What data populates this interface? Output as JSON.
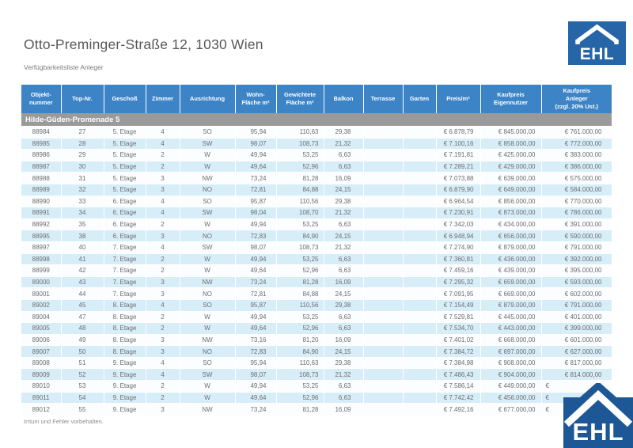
{
  "header": {
    "title": "Otto-Preminger-Straße 12, 1030 Wien",
    "subtitle": "Verfügbarkeitsliste Anleger"
  },
  "logo": {
    "text": "EHL"
  },
  "colors": {
    "header_blue": "#3c84c6",
    "section_gray": "#9a9a9a",
    "stripe_blue": "#d7edf8",
    "logo_blue_top": "#2565a8",
    "logo_blue_bottom": "#1e5796"
  },
  "table": {
    "section_title": "Hilde-Güden-Promenade 5",
    "columns": [
      {
        "key": "objektnummer",
        "lines": [
          "Objekt-",
          "nummer"
        ]
      },
      {
        "key": "top-nr",
        "lines": [
          "Top-Nr."
        ]
      },
      {
        "key": "geschoss",
        "lines": [
          "Geschoß"
        ]
      },
      {
        "key": "zimmer",
        "lines": [
          "Zimmer"
        ]
      },
      {
        "key": "ausrichtung",
        "lines": [
          "Ausrichtung"
        ]
      },
      {
        "key": "wohnflaeche",
        "lines": [
          "Wohn-",
          "Fläche m²"
        ]
      },
      {
        "key": "gewichtete-flaeche",
        "lines": [
          "Gewichtete",
          "Fläche m²"
        ]
      },
      {
        "key": "balkon",
        "lines": [
          "Balkon"
        ]
      },
      {
        "key": "terrasse",
        "lines": [
          "Terrasse"
        ]
      },
      {
        "key": "garten",
        "lines": [
          "Garten"
        ]
      },
      {
        "key": "preis-m2",
        "lines": [
          "Preis/m²"
        ]
      },
      {
        "key": "kaufpreis-eigennutzer",
        "lines": [
          "Kaufpreis",
          "Eigennutzer"
        ]
      },
      {
        "key": "kaufpreis-anleger",
        "lines": [
          "Kaufpreis",
          "Anleger",
          "(zzgl. 20% Ust.)"
        ]
      }
    ],
    "rows": [
      [
        "88984",
        "27",
        "5. Etage",
        "4",
        "SO",
        "95,94",
        "110,63",
        "29,38",
        "",
        "",
        "€ 6.878,79",
        "€ 845.000,00",
        "€ 761.000,00"
      ],
      [
        "88985",
        "28",
        "5. Etage",
        "4",
        "SW",
        "98,07",
        "108,73",
        "21,32",
        "",
        "",
        "€ 7.100,16",
        "€ 858.000,00",
        "€ 772.000,00"
      ],
      [
        "88986",
        "29",
        "5. Etage",
        "2",
        "W",
        "49,94",
        "53,25",
        "6,63",
        "",
        "",
        "€ 7.191,81",
        "€ 425.000,00",
        "€ 383.000,00"
      ],
      [
        "88987",
        "30",
        "5. Etage",
        "2",
        "W",
        "49,64",
        "52,96",
        "6,63",
        "",
        "",
        "€ 7.289,21",
        "€ 429.000,00",
        "€ 386.000,00"
      ],
      [
        "88988",
        "31",
        "5. Etage",
        "3",
        "NW",
        "73,24",
        "81,28",
        "16,09",
        "",
        "",
        "€ 7.073,88",
        "€ 639.000,00",
        "€ 575.000,00"
      ],
      [
        "88989",
        "32",
        "5. Etage",
        "3",
        "NO",
        "72,81",
        "84,88",
        "24,15",
        "",
        "",
        "€ 6.879,90",
        "€ 649.000,00",
        "€ 584.000,00"
      ],
      [
        "88990",
        "33",
        "6. Etage",
        "4",
        "SO",
        "95,87",
        "110,56",
        "29,38",
        "",
        "",
        "€ 6.964,54",
        "€ 856.000,00",
        "€ 770.000,00"
      ],
      [
        "88991",
        "34",
        "6. Etage",
        "4",
        "SW",
        "98,04",
        "108,70",
        "21,32",
        "",
        "",
        "€ 7.230,91",
        "€ 873.000,00",
        "€ 786.000,00"
      ],
      [
        "88992",
        "35",
        "6. Etage",
        "2",
        "W",
        "49,94",
        "53,25",
        "6,63",
        "",
        "",
        "€ 7.342,03",
        "€ 434.000,00",
        "€ 391.000,00"
      ],
      [
        "88995",
        "38",
        "6. Etage",
        "3",
        "NO",
        "72,83",
        "84,90",
        "24,15",
        "",
        "",
        "€ 6.948,94",
        "€ 656.000,00",
        "€ 590.000,00"
      ],
      [
        "88997",
        "40",
        "7. Etage",
        "4",
        "SW",
        "98,07",
        "108,73",
        "21,32",
        "",
        "",
        "€ 7.274,90",
        "€ 879.000,00",
        "€ 791.000,00"
      ],
      [
        "88998",
        "41",
        "7. Etage",
        "2",
        "W",
        "49,94",
        "53,25",
        "6,63",
        "",
        "",
        "€ 7.360,81",
        "€ 436.000,00",
        "€ 392.000,00"
      ],
      [
        "88999",
        "42",
        "7. Etage",
        "2",
        "W",
        "49,64",
        "52,96",
        "6,63",
        "",
        "",
        "€ 7.459,16",
        "€ 439.000,00",
        "€ 395.000,00"
      ],
      [
        "89000",
        "43",
        "7. Etage",
        "3",
        "NW",
        "73,24",
        "81,28",
        "16,09",
        "",
        "",
        "€ 7.295,32",
        "€ 659.000,00",
        "€ 593.000,00"
      ],
      [
        "89001",
        "44",
        "7. Etage",
        "3",
        "NO",
        "72,81",
        "84,88",
        "24,15",
        "",
        "",
        "€ 7.091,95",
        "€ 669.000,00",
        "€ 602.000,00"
      ],
      [
        "89002",
        "45",
        "8. Etage",
        "4",
        "SO",
        "95,87",
        "110,56",
        "29,38",
        "",
        "",
        "€ 7.154,49",
        "€ 879.000,00",
        "€ 791.000,00"
      ],
      [
        "89004",
        "47",
        "8. Etage",
        "2",
        "W",
        "49,94",
        "53,25",
        "6,63",
        "",
        "",
        "€ 7.529,81",
        "€ 445.000,00",
        "€ 401.000,00"
      ],
      [
        "89005",
        "48",
        "8. Etage",
        "2",
        "W",
        "49,64",
        "52,96",
        "6,63",
        "",
        "",
        "€ 7.534,70",
        "€ 443.000,00",
        "€ 399.000,00"
      ],
      [
        "89006",
        "49",
        "8. Etage",
        "3",
        "NW",
        "73,16",
        "81,20",
        "16,09",
        "",
        "",
        "€ 7.401,02",
        "€ 668.000,00",
        "€ 601.000,00"
      ],
      [
        "89007",
        "50",
        "8. Etage",
        "3",
        "NO",
        "72,83",
        "84,90",
        "24,15",
        "",
        "",
        "€ 7.384,72",
        "€ 697.000,00",
        "€ 627.000,00"
      ],
      [
        "89008",
        "51",
        "9. Etage",
        "4",
        "SO",
        "95,94",
        "110,63",
        "29,38",
        "",
        "",
        "€ 7.384,98",
        "€ 908.000,00",
        "€ 817.000,00"
      ],
      [
        "89009",
        "52",
        "9. Etage",
        "4",
        "SW",
        "98,07",
        "108,73",
        "21,32",
        "",
        "",
        "€ 7.486,43",
        "€ 904.000,00",
        "€ 814.000,00"
      ],
      [
        "89010",
        "53",
        "9. Etage",
        "2",
        "W",
        "49,94",
        "53,25",
        "6,63",
        "",
        "",
        "€ 7.586,14",
        "€ 449.000,00",
        "€"
      ],
      [
        "89011",
        "54",
        "9. Etage",
        "2",
        "W",
        "49,64",
        "52,96",
        "6,63",
        "",
        "",
        "€ 7.742,42",
        "€ 456.000,00",
        "€"
      ],
      [
        "89012",
        "55",
        "9. Etage",
        "3",
        "NW",
        "73,24",
        "81,28",
        "16,09",
        "",
        "",
        "€ 7.492,16",
        "€ 677.000,00",
        "€"
      ]
    ]
  },
  "footer": {
    "disclaimer": "Irrtum und Fehler vorbehalten."
  }
}
